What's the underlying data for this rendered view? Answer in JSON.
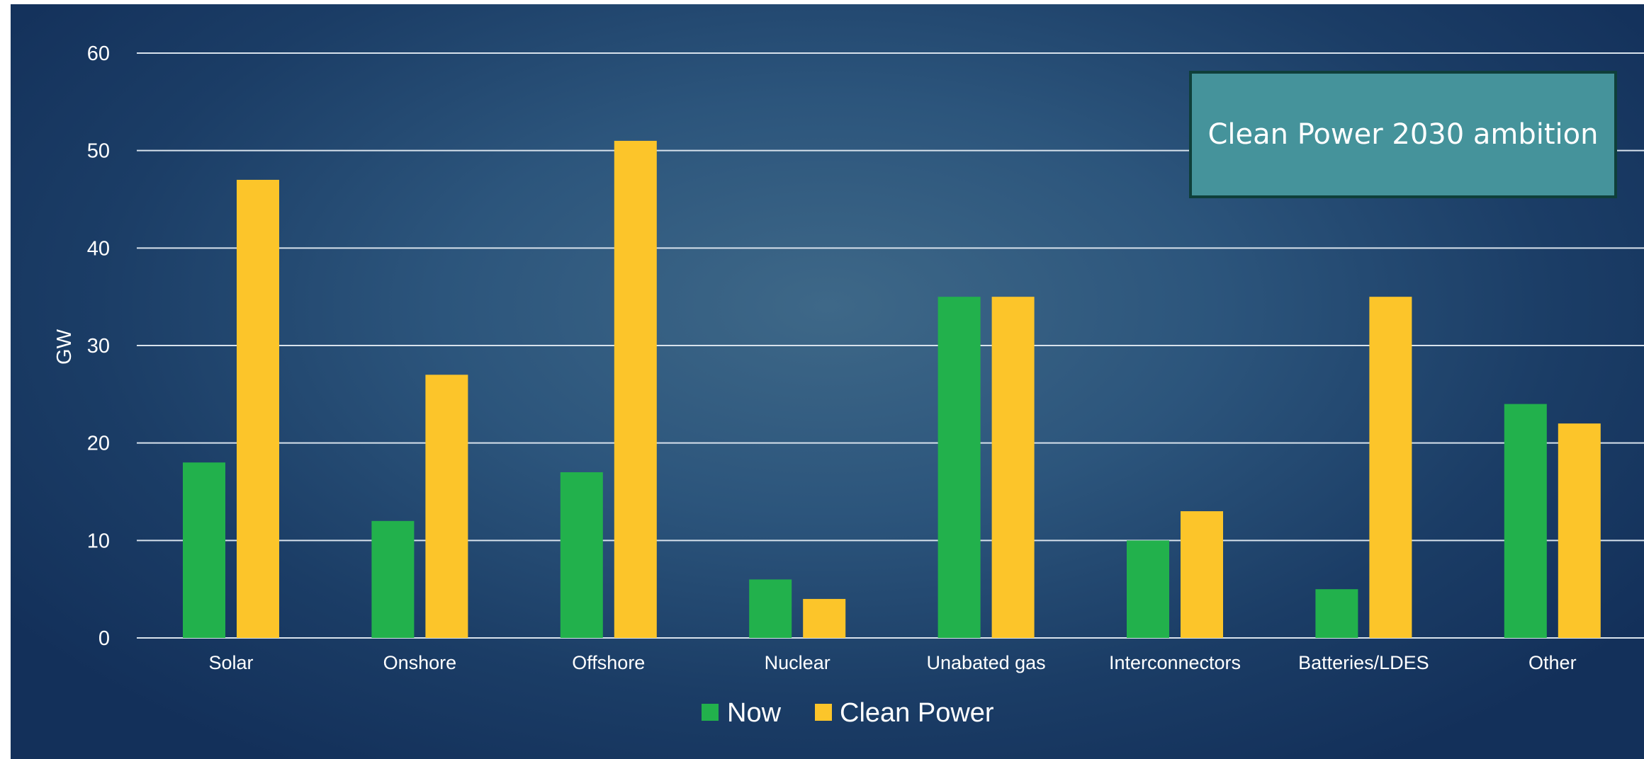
{
  "callout": {
    "text": "Clean Power 2030 ambition"
  },
  "colors": {
    "now": "#22b14c",
    "clean": "#fcc52a",
    "grid": "#d8e2ec"
  },
  "chart_data": {
    "type": "bar",
    "categories": [
      "Solar",
      "Onshore",
      "Offshore",
      "Nuclear",
      "Unabated gas",
      "Interconnectors",
      "Batteries/LDES",
      "Other"
    ],
    "series": [
      {
        "name": "Now",
        "values": [
          18,
          12,
          17,
          6,
          35,
          10,
          5,
          24
        ]
      },
      {
        "name": "Clean Power",
        "values": [
          47,
          27,
          51,
          4,
          35,
          13,
          35,
          22
        ]
      }
    ],
    "ylabel": "GW",
    "xlabel": "",
    "ylim": [
      0,
      60
    ],
    "yticks": [
      0,
      10,
      20,
      30,
      40,
      50,
      60
    ],
    "grid": true,
    "legend_position": "bottom"
  }
}
